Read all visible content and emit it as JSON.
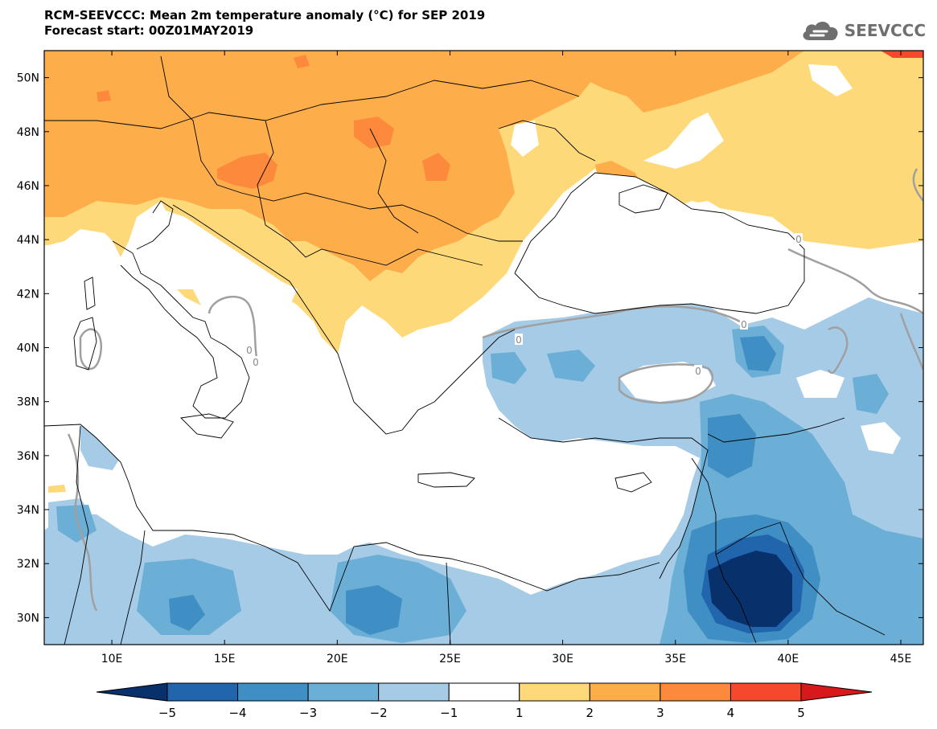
{
  "header": {
    "title": "RCM-SEEVCCC: Mean 2m temperature anomaly (°C) for SEP 2019",
    "subtitle": "Forecast start: 00Z01MAY2019"
  },
  "logo": {
    "text": "SEEVCCC",
    "icon": "cloud-icon",
    "color": "#6f6f6f"
  },
  "map": {
    "region": "Eastern Mediterranean / Southeastern Europe",
    "lon_range": [
      7,
      46
    ],
    "lat_range": [
      29,
      51
    ],
    "lon_ticks": [
      {
        "value": 10,
        "label": "10E"
      },
      {
        "value": 15,
        "label": "15E"
      },
      {
        "value": 20,
        "label": "20E"
      },
      {
        "value": 25,
        "label": "25E"
      },
      {
        "value": 30,
        "label": "30E"
      },
      {
        "value": 35,
        "label": "35E"
      },
      {
        "value": 40,
        "label": "40E"
      },
      {
        "value": 45,
        "label": "45E"
      }
    ],
    "lat_ticks": [
      {
        "value": 30,
        "label": "30N"
      },
      {
        "value": 32,
        "label": "32N"
      },
      {
        "value": 34,
        "label": "34N"
      },
      {
        "value": 36,
        "label": "36N"
      },
      {
        "value": 38,
        "label": "38N"
      },
      {
        "value": 40,
        "label": "40N"
      },
      {
        "value": 42,
        "label": "42N"
      },
      {
        "value": 44,
        "label": "44N"
      },
      {
        "value": 46,
        "label": "46N"
      },
      {
        "value": 48,
        "label": "48N"
      },
      {
        "value": 50,
        "label": "50N"
      }
    ],
    "contour_labels": [
      "0",
      "0",
      "0",
      "0",
      "0",
      "0"
    ]
  },
  "colorbar": {
    "labels": [
      "−5",
      "−4",
      "−3",
      "−2",
      "−1",
      "1",
      "2",
      "3",
      "4",
      "5"
    ],
    "colors": [
      "#08306b",
      "#2166ac",
      "#3f8fc5",
      "#6baed6",
      "#a6cbe6",
      "#ffffff",
      "#fdd97a",
      "#fdae4b",
      "#fd8a3c",
      "#f4492c",
      "#d7191c"
    ]
  },
  "legend_colors": {
    "warm1": "#fdd97a",
    "warm2": "#fdae4b",
    "warm3": "#fd8a3c",
    "warm4": "#f4492c",
    "cool1": "#a6cbe6",
    "cool2": "#6baed6",
    "cool3": "#3f8fc5",
    "cool4": "#2166ac",
    "cool5": "#08306b",
    "contour": "#a0a0a0"
  }
}
